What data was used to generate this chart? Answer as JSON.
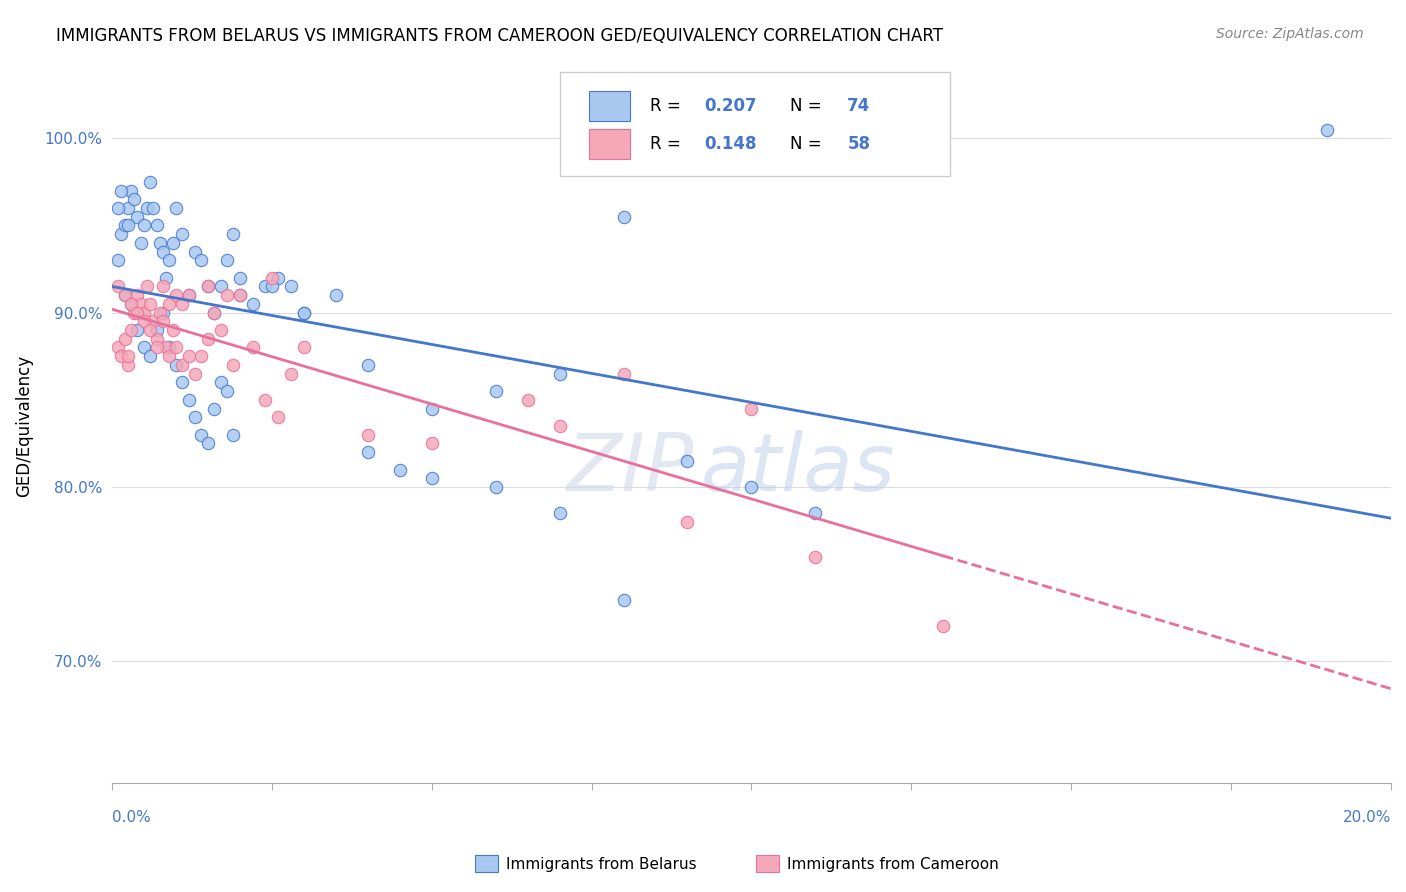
{
  "title": "IMMIGRANTS FROM BELARUS VS IMMIGRANTS FROM CAMEROON GED/EQUIVALENCY CORRELATION CHART",
  "source": "Source: ZipAtlas.com",
  "ylabel": "GED/Equivalency",
  "yticks": [
    70.0,
    80.0,
    90.0,
    100.0
  ],
  "ytick_labels": [
    "70.0%",
    "80.0%",
    "90.0%",
    "100.0%"
  ],
  "xlim": [
    0.0,
    20.0
  ],
  "ylim": [
    63.0,
    104.0
  ],
  "R_belarus": 0.207,
  "N_belarus": 74,
  "R_cameroon": 0.148,
  "N_cameroon": 58,
  "color_belarus": "#a8c8f0",
  "color_cameroon": "#f4a8b8",
  "line_color_belarus": "#4477cc",
  "line_color_cameroon": "#e8709a",
  "legend_label_belarus": "Immigrants from Belarus",
  "legend_label_cameroon": "Immigrants from Cameroon",
  "watermark_zip": "ZIP",
  "watermark_atlas": "atlas",
  "dashed_start_x": 13.0,
  "belarus_x": [
    0.1,
    0.15,
    0.2,
    0.25,
    0.3,
    0.35,
    0.4,
    0.45,
    0.5,
    0.55,
    0.6,
    0.65,
    0.7,
    0.75,
    0.8,
    0.85,
    0.9,
    0.95,
    1.0,
    1.1,
    1.2,
    1.3,
    1.4,
    1.5,
    1.6,
    1.7,
    1.8,
    1.9,
    2.0,
    2.2,
    2.4,
    2.6,
    2.8,
    3.0,
    3.5,
    4.0,
    4.5,
    5.0,
    6.0,
    7.0,
    8.0,
    9.0,
    10.0,
    11.0,
    19.0,
    0.2,
    0.3,
    0.4,
    0.5,
    0.6,
    0.7,
    0.8,
    0.9,
    1.0,
    1.1,
    1.2,
    1.3,
    1.4,
    1.5,
    1.6,
    1.7,
    1.8,
    1.9,
    2.0,
    2.5,
    3.0,
    4.0,
    5.0,
    6.0,
    7.0,
    8.0,
    0.1,
    0.15,
    0.25
  ],
  "belarus_y": [
    93.0,
    94.5,
    95.0,
    96.0,
    97.0,
    96.5,
    95.5,
    94.0,
    95.0,
    96.0,
    97.5,
    96.0,
    95.0,
    94.0,
    93.5,
    92.0,
    93.0,
    94.0,
    96.0,
    94.5,
    91.0,
    93.5,
    93.0,
    91.5,
    90.0,
    91.5,
    93.0,
    94.5,
    91.0,
    90.5,
    91.5,
    92.0,
    91.5,
    90.0,
    91.0,
    82.0,
    81.0,
    80.5,
    80.0,
    78.5,
    73.5,
    81.5,
    80.0,
    78.5,
    100.5,
    91.0,
    90.5,
    89.0,
    88.0,
    87.5,
    89.0,
    90.0,
    88.0,
    87.0,
    86.0,
    85.0,
    84.0,
    83.0,
    82.5,
    84.5,
    86.0,
    85.5,
    83.0,
    92.0,
    91.5,
    90.0,
    87.0,
    84.5,
    85.5,
    86.5,
    95.5,
    96.0,
    97.0,
    95.0
  ],
  "cameroon_x": [
    0.1,
    0.15,
    0.2,
    0.25,
    0.3,
    0.35,
    0.4,
    0.45,
    0.5,
    0.55,
    0.6,
    0.65,
    0.7,
    0.75,
    0.8,
    0.85,
    0.9,
    0.95,
    1.0,
    1.1,
    1.2,
    1.3,
    1.4,
    1.5,
    1.6,
    1.7,
    1.8,
    1.9,
    2.0,
    2.2,
    2.4,
    2.6,
    2.8,
    3.0,
    4.0,
    5.0,
    6.5,
    7.0,
    8.0,
    9.0,
    10.0,
    11.0,
    13.0,
    0.1,
    0.2,
    0.3,
    0.4,
    0.5,
    0.6,
    0.7,
    0.8,
    0.9,
    1.0,
    1.1,
    1.2,
    1.5,
    2.5,
    0.25
  ],
  "cameroon_y": [
    88.0,
    87.5,
    88.5,
    87.0,
    89.0,
    90.0,
    91.0,
    90.5,
    90.0,
    91.5,
    90.5,
    89.5,
    88.5,
    90.0,
    89.5,
    88.0,
    87.5,
    89.0,
    88.0,
    87.0,
    87.5,
    86.5,
    87.5,
    88.5,
    90.0,
    89.0,
    91.0,
    87.0,
    91.0,
    88.0,
    85.0,
    84.0,
    86.5,
    88.0,
    83.0,
    82.5,
    85.0,
    83.5,
    86.5,
    78.0,
    84.5,
    76.0,
    72.0,
    91.5,
    91.0,
    90.5,
    90.0,
    89.5,
    89.0,
    88.0,
    91.5,
    90.5,
    91.0,
    90.5,
    91.0,
    91.5,
    92.0,
    87.5
  ]
}
